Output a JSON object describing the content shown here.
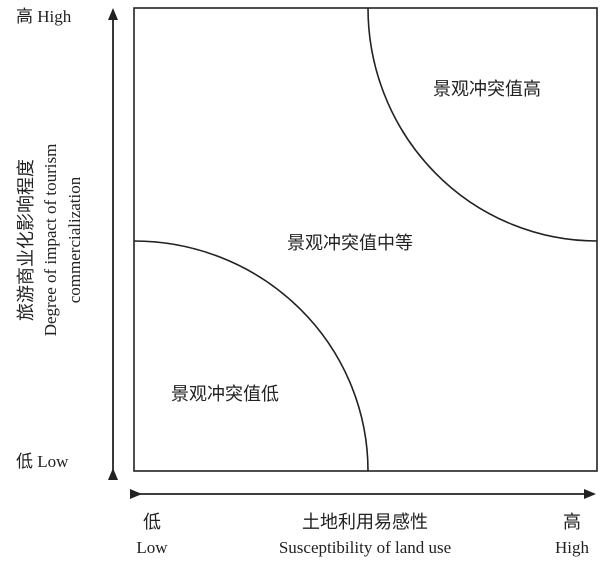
{
  "y_axis": {
    "high_label": "高 High",
    "low_label": "低 Low",
    "title_cn": "旅游商业化影响程度",
    "title_en_line1": "Degree of impact of tourism",
    "title_en_line2": "commercialization"
  },
  "x_axis": {
    "low_cn": "低",
    "low_en": "Low",
    "high_cn": "高",
    "high_en": "High",
    "title_cn": "土地利用易感性",
    "title_en": "Susceptibility of land use"
  },
  "regions": {
    "high": "景观冲突值高",
    "medium": "景观冲突值中等",
    "low": "景观冲突值低"
  }
}
